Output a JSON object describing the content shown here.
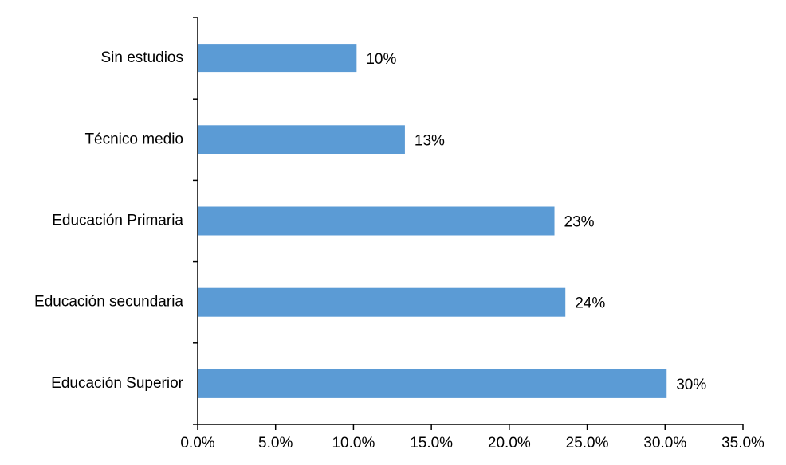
{
  "chart_data": {
    "type": "bar",
    "orientation": "horizontal",
    "categories": [
      "Sin estudios",
      "Técnico medio",
      "Educación Primaria",
      "Educación secundaria",
      "Educación Superior"
    ],
    "values": [
      10.2,
      13.3,
      22.9,
      23.6,
      30.1
    ],
    "value_labels": [
      "10%",
      "13%",
      "23%",
      "24%",
      "30%"
    ],
    "color": "#5b9bd5",
    "xlim": [
      0,
      35
    ],
    "xticks": [
      {
        "value": 0,
        "label": "0.0%"
      },
      {
        "value": 5,
        "label": "5.0%"
      },
      {
        "value": 10,
        "label": "10.0%"
      },
      {
        "value": 15,
        "label": "15.0%"
      },
      {
        "value": 20,
        "label": "20.0%"
      },
      {
        "value": 25,
        "label": "25.0%"
      },
      {
        "value": 30,
        "label": "30.0%"
      },
      {
        "value": 35,
        "label": "35.0%"
      }
    ],
    "grid": false
  }
}
